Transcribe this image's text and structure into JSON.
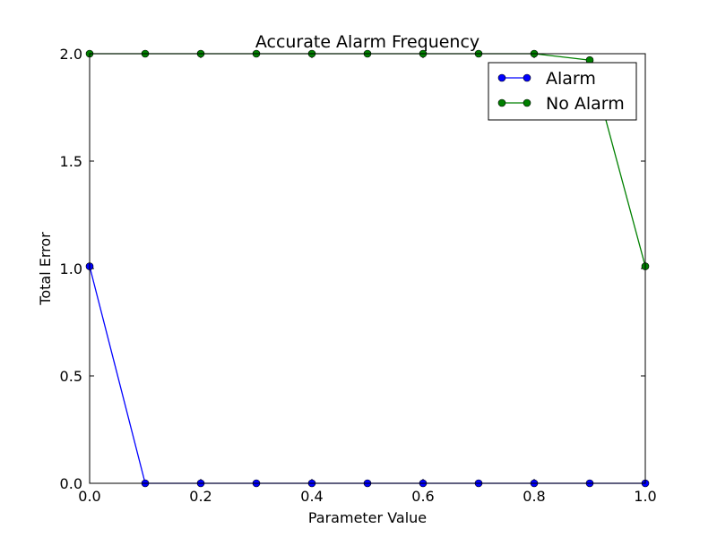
{
  "chart_data": {
    "type": "line",
    "title": "Accurate Alarm Frequency",
    "xlabel": "Parameter Value",
    "ylabel": "Total Error",
    "xlim": [
      0.0,
      1.0
    ],
    "ylim": [
      0.0,
      2.0
    ],
    "xticks": [
      "0.0",
      "0.2",
      "0.4",
      "0.6",
      "0.8",
      "1.0"
    ],
    "yticks": [
      "0.0",
      "0.5",
      "1.0",
      "1.5",
      "2.0"
    ],
    "x": [
      0.0,
      0.1,
      0.2,
      0.3,
      0.4,
      0.5,
      0.6,
      0.7,
      0.8,
      0.9,
      1.0
    ],
    "series": [
      {
        "name": "Alarm",
        "color": "#0000ff",
        "values": [
          1.01,
          0.0,
          0.0,
          0.0,
          0.0,
          0.0,
          0.0,
          0.0,
          0.0,
          0.0,
          0.0
        ]
      },
      {
        "name": "No Alarm",
        "color": "#008000",
        "values": [
          2.0,
          2.0,
          2.0,
          2.0,
          2.0,
          2.0,
          2.0,
          2.0,
          2.0,
          1.97,
          1.01
        ]
      }
    ],
    "grid": false,
    "legend_position": "top-right"
  }
}
